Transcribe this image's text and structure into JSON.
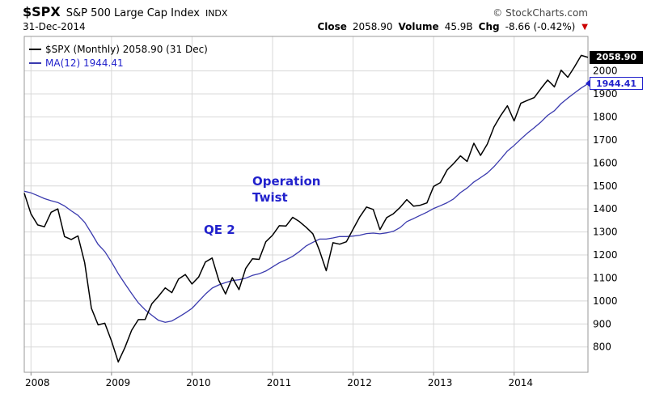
{
  "header": {
    "symbol": "$SPX",
    "name": "S&P 500 Large Cap Index",
    "exchange": "INDX",
    "watermark": "© StockCharts.com",
    "date": "31-Dec-2014",
    "close_label": "Close",
    "close": "2058.90",
    "volume_label": "Volume",
    "volume": "45.9B",
    "chg_label": "Chg",
    "chg": "-8.66 (-0.42%)",
    "direction_icon": "▼"
  },
  "legend": {
    "spx": "$SPX (Monthly) 2058.90 (31 Dec)",
    "ma": "MA(12) 1944.41"
  },
  "annotations": {
    "operation_line1": "Operation",
    "operation_line2": "Twist",
    "qe2": "QE 2"
  },
  "price_tags": {
    "last": "2058.90",
    "ma": "1944.41"
  },
  "colors": {
    "price_line": "#000000",
    "ma_line": "#3a3aae",
    "annotation_blue": "#2222cc",
    "negative_red": "#cc0000",
    "grid": "#d8d8d8",
    "plot_border": "#999999"
  },
  "chart_data": {
    "type": "line",
    "title": "$SPX (Monthly) with MA(12), 2008-2014",
    "x_start": "2007-12",
    "x_end": "2014-12",
    "x_freq": "monthly",
    "x_tick_labels": [
      "2008",
      "2009",
      "2010",
      "2011",
      "2012",
      "2013",
      "2014"
    ],
    "x_tick_indices": [
      1,
      13,
      25,
      37,
      49,
      61,
      73
    ],
    "y_ticks": [
      800,
      900,
      1000,
      1100,
      1200,
      1300,
      1400,
      1500,
      1600,
      1700,
      1800,
      1900,
      2000
    ],
    "ylim": [
      690,
      2150
    ],
    "grid": true,
    "legend_position": "top-left",
    "series": [
      {
        "name": "$SPX (Monthly)",
        "color": "#000000",
        "last_value": 2058.9,
        "values": [
          1468.4,
          1378.6,
          1330.6,
          1322.7,
          1385.6,
          1400.4,
          1280.0,
          1267.4,
          1282.8,
          1166.4,
          968.8,
          896.2,
          903.3,
          825.9,
          735.1,
          797.9,
          872.8,
          919.1,
          919.3,
          987.5,
          1020.6,
          1057.1,
          1036.2,
          1095.6,
          1115.1,
          1073.9,
          1104.5,
          1169.4,
          1186.7,
          1089.4,
          1030.7,
          1101.6,
          1049.3,
          1141.2,
          1183.3,
          1180.6,
          1257.6,
          1286.1,
          1327.2,
          1325.8,
          1363.6,
          1345.2,
          1320.6,
          1292.3,
          1218.9,
          1131.4,
          1253.3,
          1247.0,
          1257.6,
          1312.4,
          1365.7,
          1408.5,
          1397.9,
          1310.3,
          1362.2,
          1379.3,
          1406.6,
          1440.7,
          1412.2,
          1416.2,
          1426.2,
          1498.1,
          1514.7,
          1569.2,
          1597.6,
          1630.7,
          1606.3,
          1685.7,
          1633.0,
          1681.6,
          1756.5,
          1805.8,
          1848.4,
          1782.6,
          1859.5,
          1872.3,
          1883.9,
          1923.6,
          1960.2,
          1930.7,
          2003.4,
          1972.3,
          2018.1,
          2067.6,
          2058.9
        ]
      },
      {
        "name": "MA(12)",
        "color": "#3a3aae",
        "last_value": 1944.41,
        "values": [
          1477,
          1470,
          1458,
          1445,
          1436,
          1428,
          1413,
          1392,
          1372,
          1342,
          1295,
          1246,
          1215,
          1169,
          1119,
          1075,
          1032,
          992,
          962,
          938,
          916,
          907,
          913,
          930,
          948,
          968,
          999,
          1030,
          1056,
          1070,
          1080,
          1089,
          1092,
          1099,
          1111,
          1118,
          1130,
          1148,
          1166,
          1179,
          1194,
          1215,
          1239,
          1255,
          1269,
          1269,
          1274,
          1280,
          1280,
          1282,
          1286,
          1293,
          1295,
          1292,
          1296,
          1303,
          1319,
          1345,
          1358,
          1372,
          1386,
          1402,
          1414,
          1427,
          1444,
          1471,
          1491,
          1517,
          1536,
          1556,
          1584,
          1617,
          1652,
          1676,
          1704,
          1730,
          1753,
          1778,
          1807,
          1827,
          1858,
          1882,
          1904,
          1926,
          1944.4
        ]
      }
    ]
  }
}
